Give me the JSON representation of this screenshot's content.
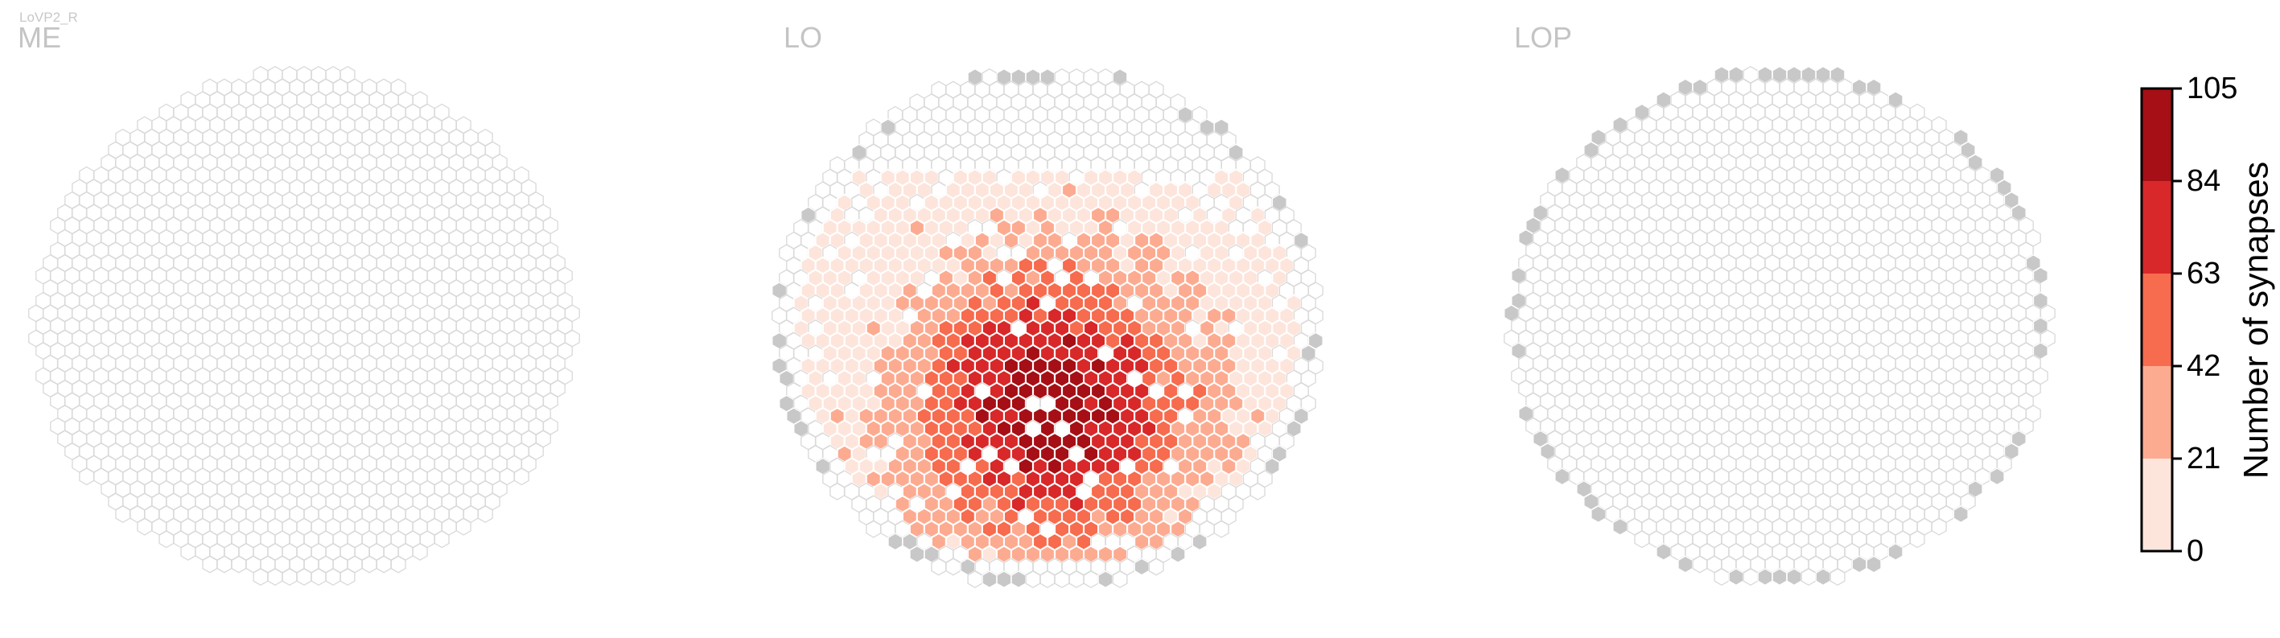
{
  "cell_type": "LoVP2_R",
  "panels": [
    {
      "id": "me",
      "label": "ME"
    },
    {
      "id": "lo",
      "label": "LO"
    },
    {
      "id": "lop",
      "label": "LOP"
    }
  ],
  "colorbar": {
    "title": "Number of synapses",
    "ticks": [
      "0",
      "21",
      "42",
      "63",
      "84",
      "105"
    ],
    "bins": [
      0,
      21,
      42,
      63,
      84,
      105
    ],
    "colors": [
      "#fde5dc",
      "#fcab91",
      "#f76b4e",
      "#d8282a",
      "#a50f15"
    ]
  },
  "colors": {
    "empty_hex_stroke": "#d9d9d9",
    "outside_column": "#c8c8c8",
    "hex_border": "#ffffff"
  },
  "chart_data": {
    "type": "heatmap",
    "title": "",
    "value_label": "Number of synapses",
    "vmin": 0,
    "vmax": 105,
    "grid": "hexagonal columns per neuropil",
    "panels": [
      {
        "name": "ME",
        "synapse_summary": "no synapses in any column"
      },
      {
        "name": "LO",
        "synapse_summary": "synapses across most columns; highest values (84-105) in the lower-central region, lightest (0-21) at the upper and outer areas",
        "peak_range": [
          84,
          105
        ]
      },
      {
        "name": "LOP",
        "synapse_summary": "no synapses; gray hexes mark rim columns"
      }
    ]
  }
}
